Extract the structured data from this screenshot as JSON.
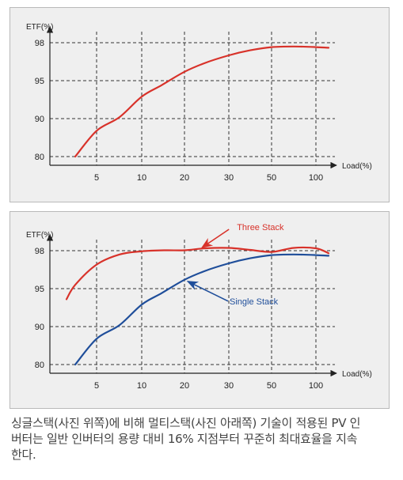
{
  "chart_data": [
    {
      "type": "line",
      "ylabel": "ETF(%)",
      "xlabel": "Load(%)",
      "x_ticks": [
        5,
        10,
        20,
        30,
        50,
        100
      ],
      "y_ticks": [
        80,
        90,
        95,
        98
      ],
      "grid": true,
      "series": [
        {
          "color": "#d8322a",
          "points": [
            [
              3,
              80
            ],
            [
              5,
              86.8
            ],
            [
              7,
              90.2
            ],
            [
              10,
              92.9
            ],
            [
              14,
              94.4
            ],
            [
              20,
              95.7
            ],
            [
              25,
              96.4
            ],
            [
              30,
              97.0
            ],
            [
              40,
              97.4
            ],
            [
              50,
              97.65
            ],
            [
              70,
              97.7
            ],
            [
              100,
              97.65
            ],
            [
              120,
              97.6
            ]
          ]
        }
      ]
    },
    {
      "type": "line",
      "ylabel": "ETF(%)",
      "xlabel": "Load(%)",
      "x_ticks": [
        5,
        10,
        20,
        30,
        50,
        100
      ],
      "y_ticks": [
        80,
        90,
        95,
        98
      ],
      "grid": true,
      "series": [
        {
          "name": "Three Stack",
          "color": "#d8322a",
          "points": [
            [
              1.8,
              93.6
            ],
            [
              3,
              95.3
            ],
            [
              5,
              96.9
            ],
            [
              7,
              97.7
            ],
            [
              10,
              97.95
            ],
            [
              15,
              98.05
            ],
            [
              20,
              98.05
            ],
            [
              25,
              98.3
            ],
            [
              30,
              98.35
            ],
            [
              40,
              98.1
            ],
            [
              50,
              97.9
            ],
            [
              70,
              98.35
            ],
            [
              100,
              98.3
            ],
            [
              120,
              97.8
            ]
          ]
        },
        {
          "name": "Single Stack",
          "color": "#1f4e9a",
          "points": [
            [
              3,
              80
            ],
            [
              5,
              86.8
            ],
            [
              7,
              90.2
            ],
            [
              10,
              92.9
            ],
            [
              14,
              94.4
            ],
            [
              20,
              95.7
            ],
            [
              25,
              96.4
            ],
            [
              30,
              97.0
            ],
            [
              40,
              97.4
            ],
            [
              50,
              97.65
            ],
            [
              70,
              97.7
            ],
            [
              100,
              97.65
            ],
            [
              120,
              97.6
            ]
          ]
        }
      ],
      "annotations": [
        {
          "text": "Three Stack",
          "target": [
            23.5,
            98.1
          ],
          "color": "#d8322a"
        },
        {
          "text": "Single Stack",
          "target": [
            20,
            95.7
          ],
          "color": "#1f4e9a"
        }
      ]
    }
  ],
  "caption": {
    "line1": "싱글스택(사진 위쪽)에 비해 멀티스택(사진 아래쪽) 기술이 적용된 PV 인",
    "line2": "버터는 일반 인버터의 용량 대비 16% 지점부터 꾸준히 최대효율을 지속",
    "line3": "한다."
  }
}
